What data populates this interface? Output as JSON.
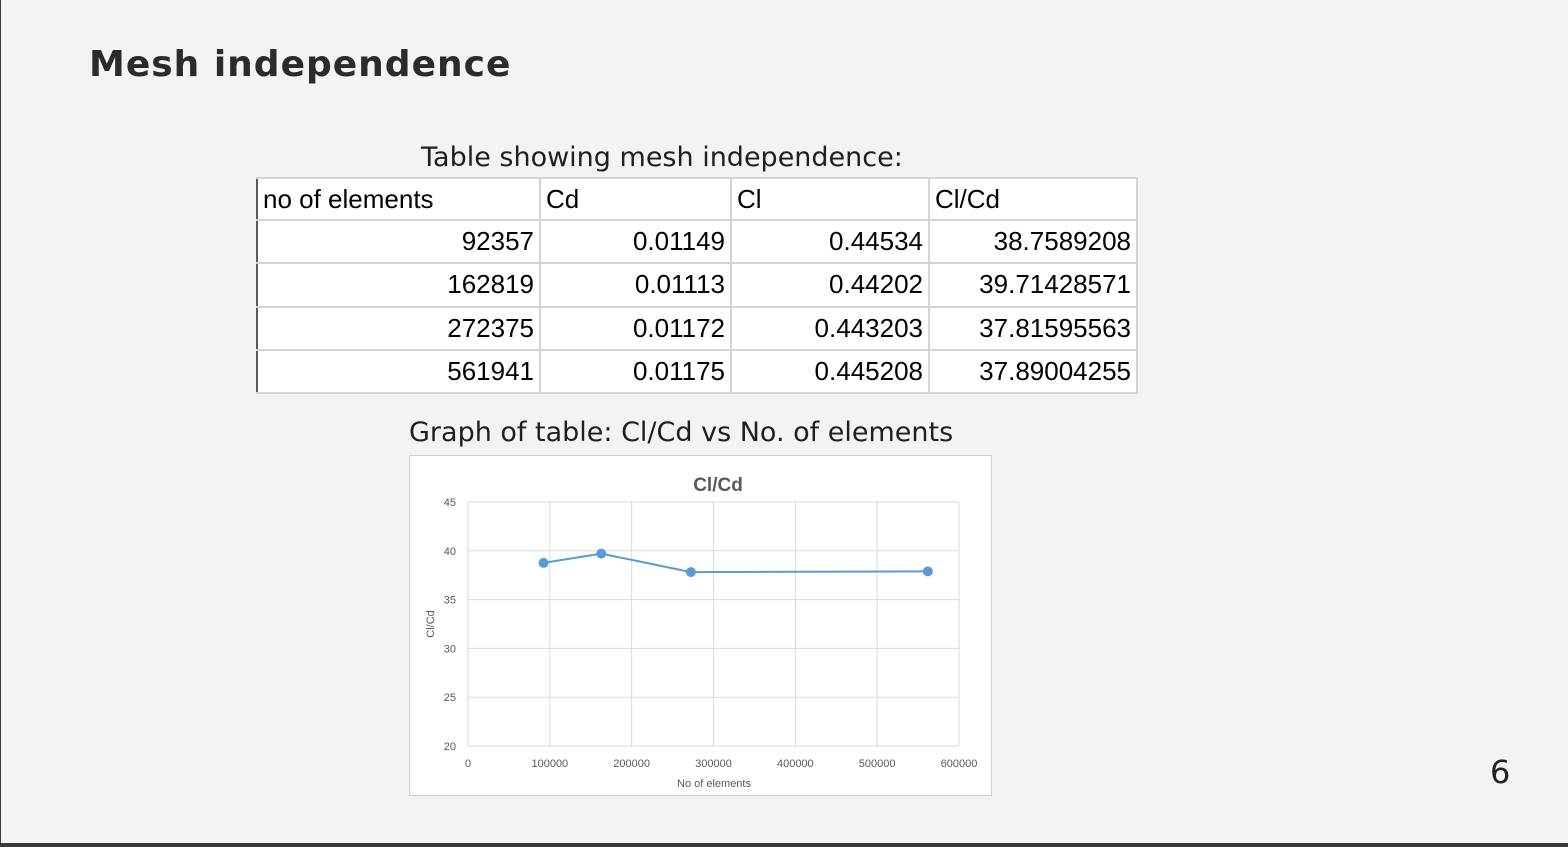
{
  "slide": {
    "title": "Mesh independence",
    "table_caption": "Table showing mesh independence:",
    "graph_caption": "Graph of table: Cl/Cd vs No. of elements",
    "page_number": "6"
  },
  "table": {
    "headers": [
      "no of elements",
      "Cd",
      "Cl",
      "Cl/Cd"
    ],
    "rows": [
      [
        "92357",
        "0.01149",
        "0.44534",
        "38.7589208"
      ],
      [
        "162819",
        "0.01113",
        "0.44202",
        "39.71428571"
      ],
      [
        "272375",
        "0.01172",
        "0.443203",
        "37.81595563"
      ],
      [
        "561941",
        "0.01175",
        "0.445208",
        "37.89004255"
      ]
    ]
  },
  "chart_data": {
    "type": "line",
    "title": "Cl/Cd",
    "xlabel": "No of elements",
    "ylabel": "Cl/Cd",
    "xlim": [
      0,
      600000
    ],
    "ylim": [
      20,
      45
    ],
    "xticks": [
      0,
      100000,
      200000,
      300000,
      400000,
      500000,
      600000
    ],
    "yticks": [
      20,
      25,
      30,
      35,
      40,
      45
    ],
    "grid": true,
    "series": [
      {
        "x": [
          92357,
          162819,
          272375,
          561941
        ],
        "y": [
          38.7589208,
          39.71428571,
          37.81595563,
          37.89004255
        ],
        "color": "#5b9bd5"
      }
    ]
  }
}
